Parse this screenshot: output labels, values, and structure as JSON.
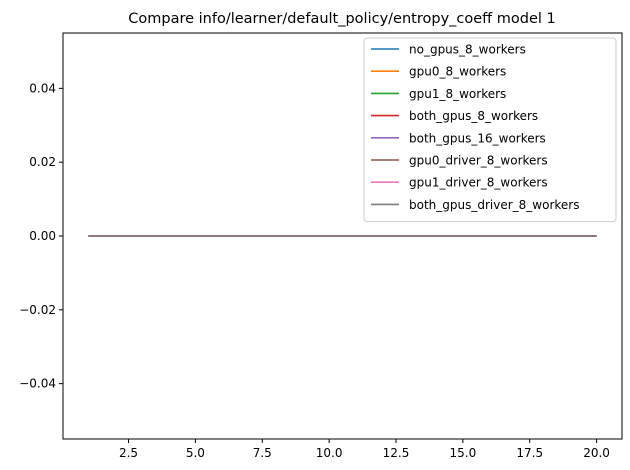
{
  "chart_data": {
    "type": "line",
    "title": "Compare info/learner/default_policy/entropy_coeff model 1",
    "xlabel": "",
    "ylabel": "",
    "xlim": [
      0.05,
      20.95
    ],
    "ylim": [
      -0.055,
      0.055
    ],
    "xticks": [
      2.5,
      5.0,
      7.5,
      10.0,
      12.5,
      15.0,
      17.5,
      20.0
    ],
    "xtick_labels": [
      "2.5",
      "5.0",
      "7.5",
      "10.0",
      "12.5",
      "15.0",
      "17.5",
      "20.0"
    ],
    "yticks": [
      -0.04,
      -0.02,
      0.0,
      0.02,
      0.04
    ],
    "ytick_labels": [
      "−0.04",
      "−0.02",
      "0.00",
      "0.02",
      "0.04"
    ],
    "grid": false,
    "legend_position": "top-right",
    "x": [
      1,
      2,
      3,
      4,
      5,
      6,
      7,
      8,
      9,
      10,
      11,
      12,
      13,
      14,
      15,
      16,
      17,
      18,
      19,
      20
    ],
    "series": [
      {
        "name": "no_gpus_8_workers",
        "color": "#1f77b4",
        "values": [
          0,
          0,
          0,
          0,
          0,
          0,
          0,
          0,
          0,
          0,
          0,
          0,
          0,
          0,
          0,
          0,
          0,
          0,
          0,
          0
        ]
      },
      {
        "name": "gpu0_8_workers",
        "color": "#ff7f0e",
        "values": [
          0,
          0,
          0,
          0,
          0,
          0,
          0,
          0,
          0,
          0,
          0,
          0,
          0,
          0,
          0,
          0,
          0,
          0,
          0,
          0
        ]
      },
      {
        "name": "gpu1_8_workers",
        "color": "#2ca02c",
        "values": [
          0,
          0,
          0,
          0,
          0,
          0,
          0,
          0,
          0,
          0,
          0,
          0,
          0,
          0,
          0,
          0,
          0,
          0,
          0,
          0
        ]
      },
      {
        "name": "both_gpus_8_workers",
        "color": "#d62728",
        "values": [
          0,
          0,
          0,
          0,
          0,
          0,
          0,
          0,
          0,
          0,
          0,
          0,
          0,
          0,
          0,
          0,
          0,
          0,
          0,
          0
        ]
      },
      {
        "name": "both_gpus_16_workers",
        "color": "#9467bd",
        "values": [
          0,
          0,
          0,
          0,
          0,
          0,
          0,
          0,
          0,
          0,
          0,
          0,
          0,
          0,
          0,
          0,
          0,
          0,
          0,
          0
        ]
      },
      {
        "name": "gpu0_driver_8_workers",
        "color": "#8c564b",
        "values": [
          0,
          0,
          0,
          0,
          0,
          0,
          0,
          0,
          0,
          0,
          0,
          0,
          0,
          0,
          0,
          0,
          0,
          0,
          0,
          0
        ]
      },
      {
        "name": "gpu1_driver_8_workers",
        "color": "#e377c2",
        "values": [
          0,
          0,
          0,
          0,
          0,
          0,
          0,
          0,
          0,
          0,
          0,
          0,
          0,
          0,
          0,
          0,
          0,
          0,
          0,
          0
        ]
      },
      {
        "name": "both_gpus_driver_8_workers",
        "color": "#7f7f7f",
        "values": [
          0,
          0,
          0,
          0,
          0,
          0,
          0,
          0,
          0,
          0,
          0,
          0,
          0,
          0,
          0,
          0,
          0,
          0,
          0,
          0
        ]
      }
    ]
  }
}
